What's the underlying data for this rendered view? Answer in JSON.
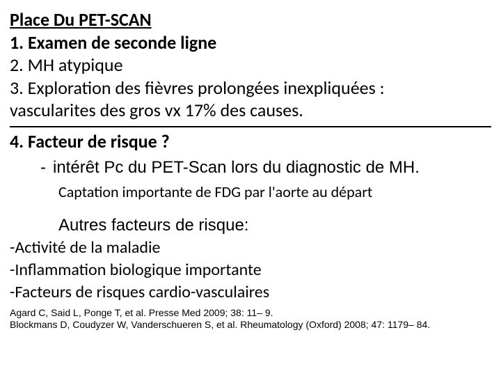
{
  "colors": {
    "background": "#ffffff",
    "text": "#000000",
    "divider": "#000000"
  },
  "typography": {
    "serif_like": "Calibri",
    "sans": "Arial",
    "title_pt": 26,
    "body_pt": 26,
    "sub_pt": 22,
    "dash_pt": 24,
    "refs_pt": 14
  },
  "title": "Place Du PET-SCAN",
  "items": {
    "i1": "1. Examen de seconde ligne",
    "i2": "2. MH atypique",
    "i3a": "3. Exploration des fièvres prolongées inexpliquées :",
    "i3b": "vascularites des gros vx 17% des causes.",
    "i4": "4. Facteur de risque ?"
  },
  "dash": {
    "mark": "-",
    "text": "intérêt Pc du PET-Scan lors du diagnostic de MH."
  },
  "sub_indent": "Captation importante de FDG par l'aorte au départ",
  "other_risks": {
    "title": "Autres facteurs de risque:",
    "r1": "-Activité de la maladie",
    "r2": "-Inflammation biologique importante",
    "r3": "-Facteurs de risques cardio-vasculaires"
  },
  "refs": {
    "r1": "Agard C, Said L, Ponge T, et al.  Presse Med 2009; 38: 11– 9.",
    "r2": "Blockmans D, Coudyzer W, Vanderschueren S, et al. Rheumatology (Oxford) 2008; 47: 1179– 84."
  }
}
